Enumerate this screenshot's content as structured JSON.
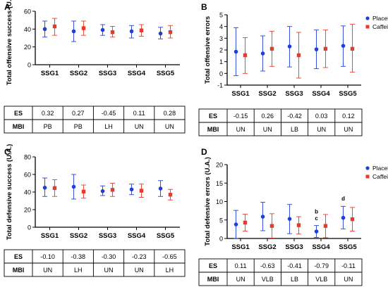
{
  "chart_data": [
    {
      "panel_label": "A",
      "type": "scatter",
      "ylabel": "Total offensive success (U.A.)",
      "ylim": [
        0,
        60
      ],
      "yticks": [
        0,
        20,
        40,
        60
      ],
      "categories": [
        "SSG1",
        "SSG2",
        "SSG3",
        "SSG4",
        "SSG5"
      ],
      "series": [
        {
          "name": "Placebo",
          "color": "#1f3fd8",
          "values": [
            40,
            37.5,
            39,
            37.5,
            35
          ],
          "err_low": [
            31,
            26,
            33,
            30,
            29
          ],
          "err_high": [
            49,
            49,
            45,
            44,
            42
          ]
        },
        {
          "name": "Caffeine",
          "color": "#e8392c",
          "values": [
            43,
            41,
            36.5,
            38.5,
            36.5
          ],
          "err_low": [
            33,
            33,
            31,
            32,
            30
          ],
          "err_high": [
            52,
            49,
            43,
            45,
            44
          ]
        }
      ],
      "table": {
        "rows": [
          {
            "label": "ES",
            "values": [
              "0.32",
              "0.27",
              "-0.45",
              "0.11",
              "0.28"
            ]
          },
          {
            "label": "MBI",
            "values": [
              "PB",
              "PB",
              "LH",
              "UN",
              "UN"
            ]
          }
        ]
      },
      "annotations": [],
      "legend": false
    },
    {
      "panel_label": "B",
      "type": "scatter",
      "ylabel": "Total offensive errors",
      "ylim": [
        -1,
        5
      ],
      "yticks": [
        -1,
        0,
        1,
        2,
        3,
        4,
        5
      ],
      "categories": [
        "SSG1",
        "SSG2",
        "SSG3",
        "SSG4",
        "SSG5"
      ],
      "series": [
        {
          "name": "Placebo",
          "color": "#1f3fd8",
          "values": [
            1.85,
            1.7,
            2.3,
            2.05,
            2.35
          ],
          "err_low": [
            -0.2,
            0.2,
            0.55,
            0.4,
            0.6
          ],
          "err_high": [
            3.9,
            3.2,
            4.0,
            3.7,
            4.05
          ]
        },
        {
          "name": "Caffeine",
          "color": "#e8392c",
          "values": [
            1.55,
            2.1,
            1.55,
            2.1,
            2.1
          ],
          "err_low": [
            0,
            0.6,
            -0.4,
            0.5,
            0.1
          ],
          "err_high": [
            3.05,
            3.6,
            3.5,
            3.7,
            4.2
          ]
        }
      ],
      "table": {
        "rows": [
          {
            "label": "ES",
            "values": [
              "-0.15",
              "0.26",
              "-0.42",
              "0.03",
              "0.12"
            ]
          },
          {
            "label": "MBI",
            "values": [
              "UN",
              "UN",
              "LB",
              "UN",
              "UN"
            ]
          }
        ]
      },
      "annotations": [],
      "legend": true
    },
    {
      "panel_label": "C",
      "type": "scatter",
      "ylabel": "Total defensive success (U.A.)",
      "ylim": [
        0,
        80
      ],
      "yticks": [
        0,
        20,
        40,
        60,
        80
      ],
      "categories": [
        "SSG1",
        "SSG2",
        "SSG3",
        "SSG4",
        "SSG5"
      ],
      "series": [
        {
          "name": "Placebo",
          "color": "#1f3fd8",
          "values": [
            45,
            46,
            41,
            43,
            44
          ],
          "err_low": [
            35,
            32,
            36,
            37,
            35
          ],
          "err_high": [
            56,
            60,
            47,
            49,
            53
          ]
        },
        {
          "name": "Caffeine",
          "color": "#e8392c",
          "values": [
            44.5,
            40.5,
            42.5,
            41.5,
            37
          ],
          "err_low": [
            35,
            33,
            35,
            34,
            31
          ],
          "err_high": [
            54,
            48,
            50,
            49,
            43
          ]
        }
      ],
      "table": {
        "rows": [
          {
            "label": "ES",
            "values": [
              "-0.10",
              "-0.38",
              "-0.30",
              "-0.23",
              "-0.65"
            ]
          },
          {
            "label": "MBI",
            "values": [
              "UN",
              "LH",
              "UN",
              "UN",
              "LH"
            ]
          }
        ]
      },
      "annotations": [],
      "legend": false
    },
    {
      "panel_label": "D",
      "type": "scatter",
      "ylabel": "Total defensive errors (U.A.)",
      "ylim": [
        0,
        20
      ],
      "yticks": [
        0,
        5,
        10,
        15,
        20
      ],
      "categories": [
        "SSG1",
        "SSG2",
        "SSG3",
        "SSG4",
        "SSG5"
      ],
      "series": [
        {
          "name": "Placebo",
          "color": "#1f3fd8",
          "values": [
            3.8,
            5.9,
            5.3,
            1.9,
            5.6
          ],
          "err_low": [
            0,
            2.1,
            1.3,
            0.3,
            2.6
          ],
          "err_high": [
            7.6,
            9.8,
            9.2,
            3.5,
            8.7
          ]
        },
        {
          "name": "Caffeine",
          "color": "#e8392c",
          "values": [
            4.3,
            3.4,
            3.6,
            3.4,
            5.2
          ],
          "err_low": [
            2.0,
            0.1,
            1.2,
            0.2,
            2.0
          ],
          "err_high": [
            6.6,
            6.7,
            5.9,
            6.5,
            8.4
          ]
        }
      ],
      "table": {
        "rows": [
          {
            "label": "ES",
            "values": [
              "0.11",
              "-0.63",
              "-0.41",
              "-0.79",
              "-0.11"
            ]
          },
          {
            "label": "MBI",
            "values": [
              "UN",
              "VLB",
              "LB",
              "VLB",
              "UN"
            ]
          }
        ]
      },
      "annotations": [
        {
          "category": "SSG4",
          "text": "c",
          "value": 5.0
        },
        {
          "category": "SSG4",
          "text": "b",
          "value": 6.8
        },
        {
          "category": "SSG5",
          "text": "d",
          "value": 10.3
        }
      ],
      "legend": true
    }
  ]
}
